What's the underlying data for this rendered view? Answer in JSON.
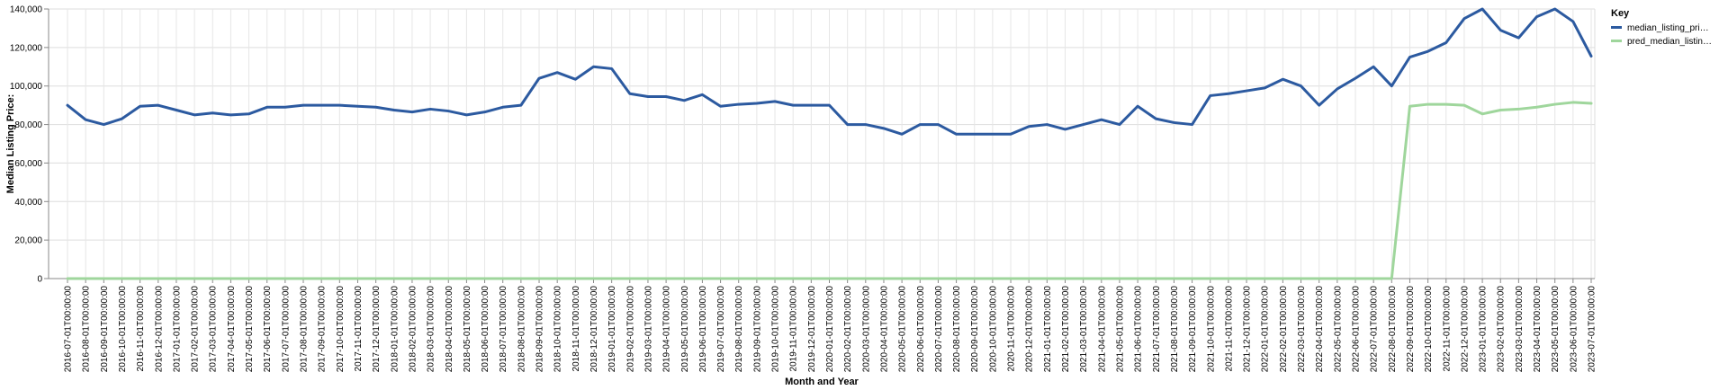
{
  "chart_data": {
    "type": "line",
    "xlabel": "Month and Year",
    "ylabel": "Median Listing Price:",
    "ylim": [
      0,
      140000
    ],
    "yticks": [
      "0",
      "20,000",
      "40,000",
      "60,000",
      "80,000",
      "100,000",
      "120,000",
      "140,000"
    ],
    "grid": true,
    "legend": {
      "title": "Key",
      "placement": "top-right"
    },
    "x": [
      "2016-07-01T00:00:00",
      "2016-08-01T00:00:00",
      "2016-09-01T00:00:00",
      "2016-10-01T00:00:00",
      "2016-11-01T00:00:00",
      "2016-12-01T00:00:00",
      "2017-01-01T00:00:00",
      "2017-02-01T00:00:00",
      "2017-03-01T00:00:00",
      "2017-04-01T00:00:00",
      "2017-05-01T00:00:00",
      "2017-06-01T00:00:00",
      "2017-07-01T00:00:00",
      "2017-08-01T00:00:00",
      "2017-09-01T00:00:00",
      "2017-10-01T00:00:00",
      "2017-11-01T00:00:00",
      "2017-12-01T00:00:00",
      "2018-01-01T00:00:00",
      "2018-02-01T00:00:00",
      "2018-03-01T00:00:00",
      "2018-04-01T00:00:00",
      "2018-05-01T00:00:00",
      "2018-06-01T00:00:00",
      "2018-07-01T00:00:00",
      "2018-08-01T00:00:00",
      "2018-09-01T00:00:00",
      "2018-10-01T00:00:00",
      "2018-11-01T00:00:00",
      "2018-12-01T00:00:00",
      "2019-01-01T00:00:00",
      "2019-02-01T00:00:00",
      "2019-03-01T00:00:00",
      "2019-04-01T00:00:00",
      "2019-05-01T00:00:00",
      "2019-06-01T00:00:00",
      "2019-07-01T00:00:00",
      "2019-08-01T00:00:00",
      "2019-09-01T00:00:00",
      "2019-10-01T00:00:00",
      "2019-11-01T00:00:00",
      "2019-12-01T00:00:00",
      "2020-01-01T00:00:00",
      "2020-02-01T00:00:00",
      "2020-03-01T00:00:00",
      "2020-04-01T00:00:00",
      "2020-05-01T00:00:00",
      "2020-06-01T00:00:00",
      "2020-07-01T00:00:00",
      "2020-08-01T00:00:00",
      "2020-09-01T00:00:00",
      "2020-10-01T00:00:00",
      "2020-11-01T00:00:00",
      "2020-12-01T00:00:00",
      "2021-01-01T00:00:00",
      "2021-02-01T00:00:00",
      "2021-03-01T00:00:00",
      "2021-04-01T00:00:00",
      "2021-05-01T00:00:00",
      "2021-06-01T00:00:00",
      "2021-07-01T00:00:00",
      "2021-08-01T00:00:00",
      "2021-09-01T00:00:00",
      "2021-10-01T00:00:00",
      "2021-11-01T00:00:00",
      "2021-12-01T00:00:00",
      "2022-01-01T00:00:00",
      "2022-02-01T00:00:00",
      "2022-03-01T00:00:00",
      "2022-04-01T00:00:00",
      "2022-05-01T00:00:00",
      "2022-06-01T00:00:00",
      "2022-07-01T00:00:00",
      "2022-08-01T00:00:00",
      "2022-09-01T00:00:00",
      "2022-10-01T00:00:00",
      "2022-11-01T00:00:00",
      "2022-12-01T00:00:00",
      "2023-01-01T00:00:00",
      "2023-02-01T00:00:00",
      "2023-03-01T00:00:00",
      "2023-04-01T00:00:00",
      "2023-05-01T00:00:00",
      "2023-06-01T00:00:00",
      "2023-07-01T00:00:00"
    ],
    "series": [
      {
        "name": "median_listing_pri…",
        "color": "#2c5aa0",
        "values": [
          90000,
          82500,
          80000,
          83000,
          89500,
          90000,
          87500,
          85000,
          86000,
          85000,
          85500,
          89000,
          89000,
          90000,
          90000,
          90000,
          89500,
          89000,
          87500,
          86500,
          88000,
          87000,
          85000,
          86500,
          89000,
          90000,
          104000,
          107000,
          103500,
          110000,
          109000,
          96000,
          94500,
          94500,
          92500,
          95500,
          89500,
          90500,
          91000,
          92000,
          90000,
          90000,
          90000,
          80000,
          80000,
          78000,
          75000,
          80000,
          80000,
          75000,
          75000,
          75000,
          75000,
          79000,
          80000,
          77500,
          80000,
          82500,
          80000,
          89500,
          83000,
          81000,
          80000,
          95000,
          96000,
          97500,
          99000,
          103500,
          100000,
          90000,
          98500,
          104000,
          110000,
          100000,
          115000,
          118000,
          122500,
          135000,
          140000,
          129000,
          125000,
          136000,
          140000,
          133500,
          115500
        ]
      },
      {
        "name": "pred_median_listin…",
        "color": "#9fd69c",
        "values": [
          0,
          0,
          0,
          0,
          0,
          0,
          0,
          0,
          0,
          0,
          0,
          0,
          0,
          0,
          0,
          0,
          0,
          0,
          0,
          0,
          0,
          0,
          0,
          0,
          0,
          0,
          0,
          0,
          0,
          0,
          0,
          0,
          0,
          0,
          0,
          0,
          0,
          0,
          0,
          0,
          0,
          0,
          0,
          0,
          0,
          0,
          0,
          0,
          0,
          0,
          0,
          0,
          0,
          0,
          0,
          0,
          0,
          0,
          0,
          0,
          0,
          0,
          0,
          0,
          0,
          0,
          0,
          0,
          0,
          0,
          0,
          0,
          0,
          0,
          89500,
          90500,
          90500,
          90000,
          85500,
          87500,
          88000,
          89000,
          90500,
          91500,
          91000
        ]
      }
    ]
  }
}
